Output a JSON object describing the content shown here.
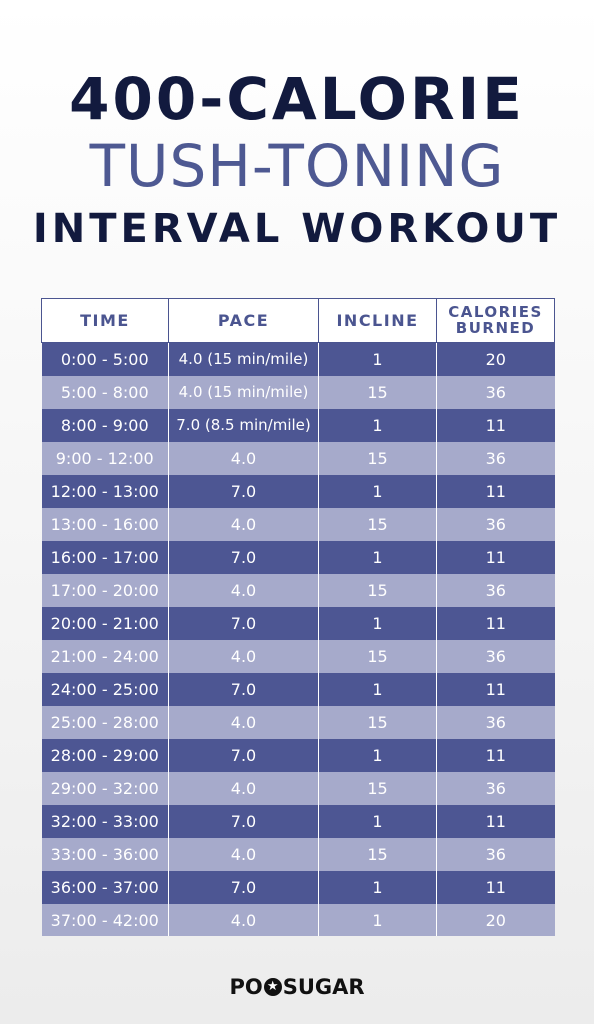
{
  "title": {
    "line1": "400-CALORIE",
    "line2": "TUSH-TONING",
    "line3": "INTERVAL WORKOUT"
  },
  "table": {
    "headers": {
      "time": "TIME",
      "pace": "PACE",
      "incline": "INCLINE",
      "calories_line1": "CALORIES",
      "calories_line2": "BURNED"
    },
    "rows": [
      {
        "time": "0:00 - 5:00",
        "pace": "4.0 (15 min/mile)",
        "incline": "1",
        "calories": "20"
      },
      {
        "time": "5:00 - 8:00",
        "pace": "4.0 (15 min/mile)",
        "incline": "15",
        "calories": "36"
      },
      {
        "time": "8:00 - 9:00",
        "pace": "7.0 (8.5 min/mile)",
        "incline": "1",
        "calories": "11"
      },
      {
        "time": "9:00 - 12:00",
        "pace": "4.0",
        "incline": "15",
        "calories": "36"
      },
      {
        "time": "12:00 - 13:00",
        "pace": "7.0",
        "incline": "1",
        "calories": "11"
      },
      {
        "time": "13:00 - 16:00",
        "pace": "4.0",
        "incline": "15",
        "calories": "36"
      },
      {
        "time": "16:00 - 17:00",
        "pace": "7.0",
        "incline": "1",
        "calories": "11"
      },
      {
        "time": "17:00 - 20:00",
        "pace": "4.0",
        "incline": "15",
        "calories": "36"
      },
      {
        "time": "20:00 - 21:00",
        "pace": "7.0",
        "incline": "1",
        "calories": "11"
      },
      {
        "time": "21:00 - 24:00",
        "pace": "4.0",
        "incline": "15",
        "calories": "36"
      },
      {
        "time": "24:00 - 25:00",
        "pace": "7.0",
        "incline": "1",
        "calories": "11"
      },
      {
        "time": "25:00 - 28:00",
        "pace": "4.0",
        "incline": "15",
        "calories": "36"
      },
      {
        "time": "28:00 - 29:00",
        "pace": "7.0",
        "incline": "1",
        "calories": "11"
      },
      {
        "time": "29:00 - 32:00",
        "pace": "4.0",
        "incline": "15",
        "calories": "36"
      },
      {
        "time": "32:00 - 33:00",
        "pace": "7.0",
        "incline": "1",
        "calories": "11"
      },
      {
        "time": "33:00 - 36:00",
        "pace": "4.0",
        "incline": "15",
        "calories": "36"
      },
      {
        "time": "36:00 - 37:00",
        "pace": "7.0",
        "incline": "1",
        "calories": "11"
      },
      {
        "time": "37:00 - 42:00",
        "pace": "4.0",
        "incline": "1",
        "calories": "20"
      }
    ]
  },
  "logo": {
    "text_before": "PO",
    "text_after": "SUGAR",
    "star_icon": "star-icon"
  },
  "colors": {
    "dark_row": "#4d5693",
    "light_row": "#a6aacb",
    "title_navy": "#121a3e",
    "title_accent": "#4e5992"
  }
}
